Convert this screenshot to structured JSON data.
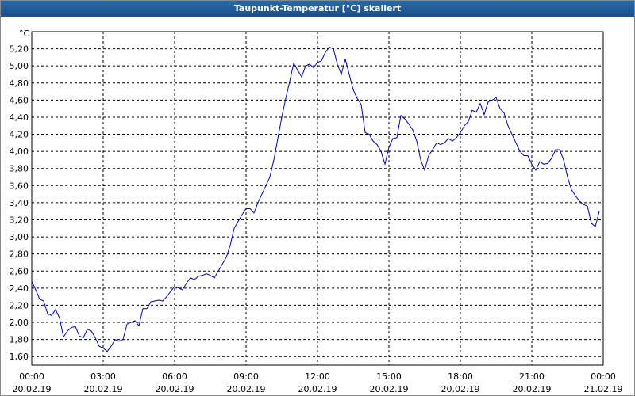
{
  "chart_data": {
    "type": "line",
    "title": "Taupunkt-Temperatur [°C] skaliert",
    "y_unit": "°C",
    "x": [
      0,
      10,
      20,
      30,
      40,
      50,
      60,
      70,
      80,
      90,
      100,
      110,
      120,
      130,
      140,
      150,
      160,
      170,
      180,
      190,
      200,
      210,
      220,
      230,
      240,
      250,
      260,
      270,
      280,
      290,
      300,
      310,
      320,
      330,
      340,
      350,
      360,
      370,
      380,
      390,
      400,
      410,
      420,
      430,
      440,
      450,
      460,
      470,
      480,
      490,
      500,
      510,
      520,
      530,
      540,
      550,
      560,
      570,
      580,
      590,
      600,
      610,
      620,
      630,
      640,
      650,
      660,
      670,
      680,
      690,
      700,
      710,
      720,
      730,
      740,
      750,
      760,
      770,
      780,
      790,
      800,
      810,
      820,
      830,
      840,
      850,
      860,
      870,
      880,
      890,
      900,
      910,
      920,
      930,
      940,
      950,
      960,
      970,
      980,
      990,
      1000,
      1010,
      1020,
      1030,
      1040,
      1050,
      1060,
      1070,
      1080,
      1090,
      1100,
      1110,
      1120,
      1130,
      1140,
      1150,
      1160,
      1170,
      1180,
      1190,
      1200,
      1210,
      1220,
      1230,
      1240,
      1250,
      1260,
      1270,
      1280,
      1290,
      1300,
      1310,
      1320,
      1330,
      1340,
      1350,
      1360,
      1370,
      1380,
      1390,
      1400,
      1410,
      1420,
      1430
    ],
    "series": [
      {
        "color": "#0000c0",
        "values": [
          2.48,
          2.38,
          2.27,
          2.25,
          2.1,
          2.08,
          2.15,
          2.05,
          1.83,
          1.9,
          1.94,
          1.95,
          1.84,
          1.82,
          1.92,
          1.9,
          1.82,
          1.72,
          1.7,
          1.66,
          1.72,
          1.8,
          1.78,
          1.8,
          1.98,
          2.0,
          2.02,
          1.96,
          2.16,
          2.16,
          2.24,
          2.25,
          2.26,
          2.25,
          2.3,
          2.36,
          2.42,
          2.4,
          2.38,
          2.46,
          2.52,
          2.5,
          2.54,
          2.55,
          2.57,
          2.55,
          2.52,
          2.6,
          2.68,
          2.76,
          2.9,
          3.1,
          3.18,
          3.26,
          3.33,
          3.33,
          3.28,
          3.4,
          3.5,
          3.6,
          3.7,
          3.9,
          4.15,
          4.4,
          4.62,
          4.82,
          5.03,
          4.95,
          4.87,
          5.0,
          5.02,
          4.98,
          5.04,
          5.06,
          5.16,
          5.22,
          5.2,
          5.02,
          4.9,
          5.08,
          4.9,
          4.72,
          4.62,
          4.55,
          4.22,
          4.2,
          4.12,
          4.08,
          4.0,
          3.85,
          4.05,
          4.15,
          4.16,
          4.42,
          4.38,
          4.32,
          4.25,
          4.12,
          3.9,
          3.78,
          3.95,
          4.02,
          4.1,
          4.08,
          4.1,
          4.15,
          4.12,
          4.16,
          4.22,
          4.3,
          4.35,
          4.48,
          4.46,
          4.56,
          4.43,
          4.58,
          4.6,
          4.63,
          4.5,
          4.45,
          4.3,
          4.2,
          4.1,
          4.0,
          3.95,
          3.95,
          3.85,
          3.78,
          3.88,
          3.85,
          3.86,
          3.92,
          4.02,
          4.02,
          3.9,
          3.7,
          3.55,
          3.48,
          3.42,
          3.38,
          3.36,
          3.16,
          3.12,
          3.3
        ]
      }
    ],
    "xlim": [
      0,
      1440
    ],
    "xticks": [
      {
        "value": 0,
        "label": "00:00"
      },
      {
        "value": 180,
        "label": "03:00"
      },
      {
        "value": 360,
        "label": "06:00"
      },
      {
        "value": 540,
        "label": "09:00"
      },
      {
        "value": 720,
        "label": "12:00"
      },
      {
        "value": 900,
        "label": "15:00"
      },
      {
        "value": 1080,
        "label": "18:00"
      },
      {
        "value": 1260,
        "label": "21:00"
      },
      {
        "value": 1440,
        "label": "00:00"
      }
    ],
    "xtick_dates": [
      "20.02.19",
      "20.02.19",
      "20.02.19",
      "20.02.19",
      "20.02.19",
      "20.02.19",
      "20.02.19",
      "20.02.19",
      "21.02.19"
    ],
    "ylim": [
      1.5,
      5.4
    ],
    "yticks": [
      {
        "value": 1.6,
        "label": "1,60"
      },
      {
        "value": 1.8,
        "label": "1,80"
      },
      {
        "value": 2.0,
        "label": "2,00"
      },
      {
        "value": 2.2,
        "label": "2,20"
      },
      {
        "value": 2.4,
        "label": "2,40"
      },
      {
        "value": 2.6,
        "label": "2,60"
      },
      {
        "value": 2.8,
        "label": "2,80"
      },
      {
        "value": 3.0,
        "label": "3,00"
      },
      {
        "value": 3.2,
        "label": "3,20"
      },
      {
        "value": 3.4,
        "label": "3,40"
      },
      {
        "value": 3.6,
        "label": "3,60"
      },
      {
        "value": 3.8,
        "label": "3,80"
      },
      {
        "value": 4.0,
        "label": "4,00"
      },
      {
        "value": 4.2,
        "label": "4,20"
      },
      {
        "value": 4.4,
        "label": "4,40"
      },
      {
        "value": 4.6,
        "label": "4,60"
      },
      {
        "value": 4.8,
        "label": "4,80"
      },
      {
        "value": 5.0,
        "label": "5,00"
      },
      {
        "value": 5.2,
        "label": "5,20"
      }
    ],
    "grid": true
  }
}
